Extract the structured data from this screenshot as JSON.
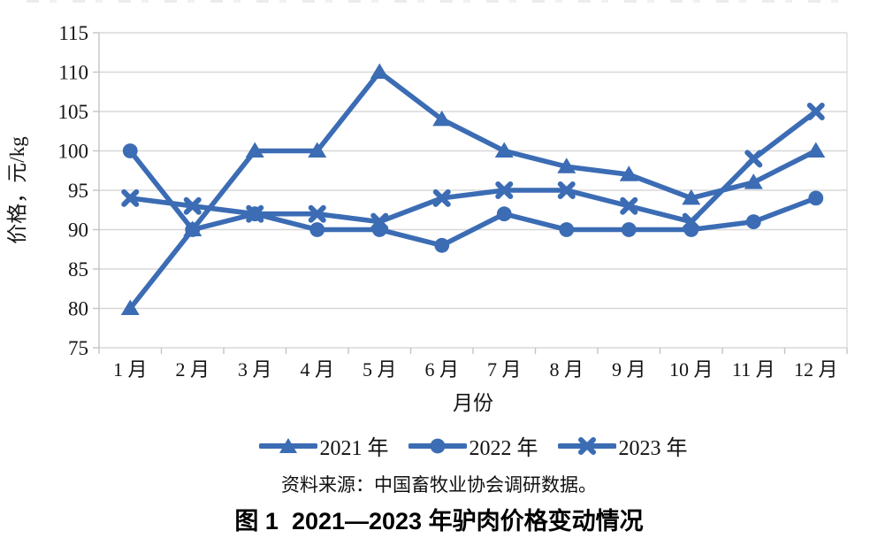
{
  "page": {
    "source_note": "资料来源：中国畜牧业协会调研数据。",
    "caption": "图 1  2021—2023 年驴肉价格变动情况"
  },
  "chart_data": {
    "type": "line",
    "title": "",
    "xlabel": "月份",
    "ylabel": "价格，元/kg",
    "categories": [
      "1 月",
      "2 月",
      "3 月",
      "4 月",
      "5 月",
      "6 月",
      "7 月",
      "8 月",
      "9 月",
      "10 月",
      "11 月",
      "12 月"
    ],
    "yticks": [
      75,
      80,
      85,
      90,
      95,
      100,
      105,
      110,
      115
    ],
    "ylim": [
      75,
      115
    ],
    "grid": true,
    "legend_position": "bottom",
    "line_color": "#3B6CB4",
    "grid_color": "#D8D8D8",
    "axis_color": "#C4C4C4",
    "series": [
      {
        "name": "2021 年",
        "marker": "triangle",
        "values": [
          80,
          90,
          100,
          100,
          110,
          104,
          100,
          98,
          97,
          94,
          96,
          100
        ]
      },
      {
        "name": "2022 年",
        "marker": "circle",
        "values": [
          100,
          90,
          92,
          90,
          90,
          88,
          92,
          90,
          90,
          90,
          91,
          94
        ]
      },
      {
        "name": "2023 年",
        "marker": "x",
        "values": [
          94,
          93,
          92,
          92,
          91,
          94,
          95,
          95,
          93,
          91,
          99,
          105
        ]
      }
    ]
  }
}
